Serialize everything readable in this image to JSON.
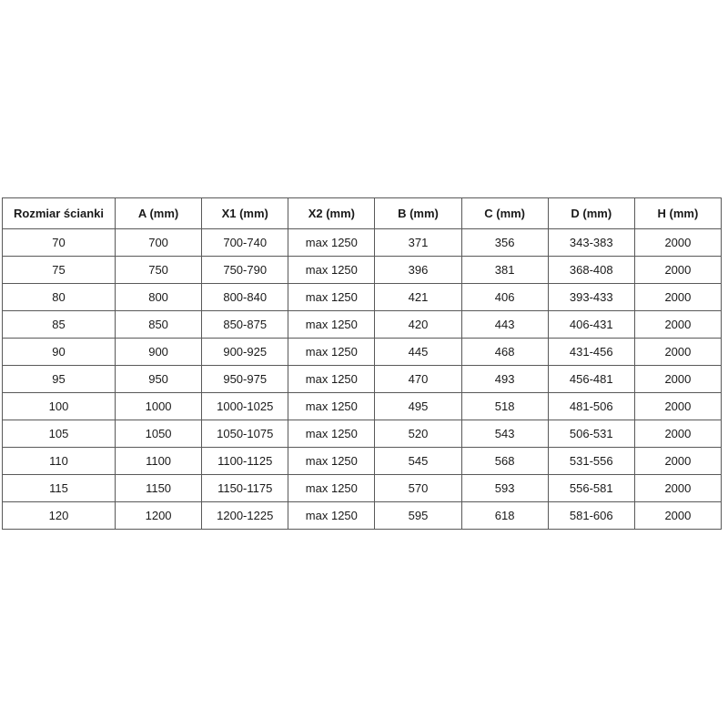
{
  "table": {
    "columns": [
      "Rozmiar ścianki",
      "A (mm)",
      "X1 (mm)",
      "X2 (mm)",
      "B (mm)",
      "C (mm)",
      "D (mm)",
      "H (mm)"
    ],
    "rows": [
      [
        "70",
        "700",
        "700-740",
        "max 1250",
        "371",
        "356",
        "343-383",
        "2000"
      ],
      [
        "75",
        "750",
        "750-790",
        "max 1250",
        "396",
        "381",
        "368-408",
        "2000"
      ],
      [
        "80",
        "800",
        "800-840",
        "max 1250",
        "421",
        "406",
        "393-433",
        "2000"
      ],
      [
        "85",
        "850",
        "850-875",
        "max 1250",
        "420",
        "443",
        "406-431",
        "2000"
      ],
      [
        "90",
        "900",
        "900-925",
        "max 1250",
        "445",
        "468",
        "431-456",
        "2000"
      ],
      [
        "95",
        "950",
        "950-975",
        "max 1250",
        "470",
        "493",
        "456-481",
        "2000"
      ],
      [
        "100",
        "1000",
        "1000-1025",
        "max 1250",
        "495",
        "518",
        "481-506",
        "2000"
      ],
      [
        "105",
        "1050",
        "1050-1075",
        "max 1250",
        "520",
        "543",
        "506-531",
        "2000"
      ],
      [
        "110",
        "1100",
        "1100-1125",
        "max 1250",
        "545",
        "568",
        "531-556",
        "2000"
      ],
      [
        "115",
        "1150",
        "1150-1175",
        "max 1250",
        "570",
        "593",
        "556-581",
        "2000"
      ],
      [
        "120",
        "1200",
        "1200-1225",
        "max 1250",
        "595",
        "618",
        "581-606",
        "2000"
      ]
    ],
    "colors": {
      "border": "#595959",
      "text": "#1a1a1a",
      "background": "#ffffff"
    }
  }
}
